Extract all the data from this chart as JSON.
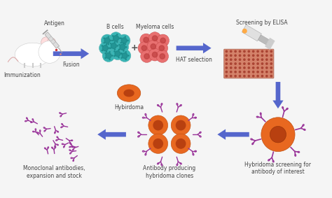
{
  "background_color": "#f5f5f5",
  "figsize": [
    4.74,
    2.83
  ],
  "dpi": 100,
  "labels": {
    "antigen": "Antigen",
    "immunization": "Immunization",
    "fusion": "Fusion",
    "bcells": "B cells",
    "myeloma": "Myeloma cells",
    "hybridoma": "Hybirdoma",
    "screening_elisa": "Screening by ELISA",
    "hat": "HAT selection",
    "hybridoma_screening": "Hybridoma screening for\nantibody of interest",
    "antibody_producing": "Antibody producing\nhybridoma clones",
    "monoclonal": "Monoclonal antibodies,\nexpansion and stock"
  },
  "arrow_color": "#5566cc",
  "bcell_color": "#3ab5b5",
  "bcell_inner": "#1a8888",
  "myeloma_color": "#e87070",
  "myeloma_inner": "#c04040",
  "hybridoma_cell_color": "#e86820",
  "hybridoma_inner": "#b84010",
  "antibody_color": "#993399",
  "plate_bg": "#d4826a",
  "plate_well": "#aa4433",
  "font_size": 5.5
}
